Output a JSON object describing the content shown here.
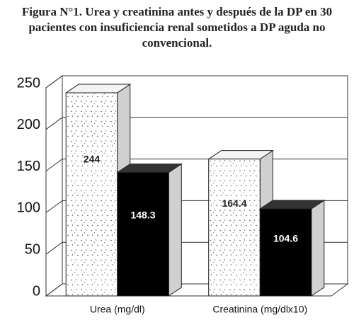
{
  "chart_data": {
    "type": "bar3d",
    "title": "Figura N°1. Urea y creatinina antes y después de la DP en 30 pacientes con insuficiencia renal sometidos a DP aguda no convencional.",
    "categories": [
      "Urea (mg/dl)",
      "Creatinina (mg/dlx10)"
    ],
    "series": [
      {
        "color": "#ffffff",
        "values": [
          244,
          164.4
        ]
      },
      {
        "color": "#000000",
        "values": [
          148.3,
          104.6
        ]
      }
    ],
    "ylim": [
      0,
      250
    ],
    "yticks": [
      0,
      50,
      100,
      150,
      200,
      250
    ],
    "grid": true
  }
}
